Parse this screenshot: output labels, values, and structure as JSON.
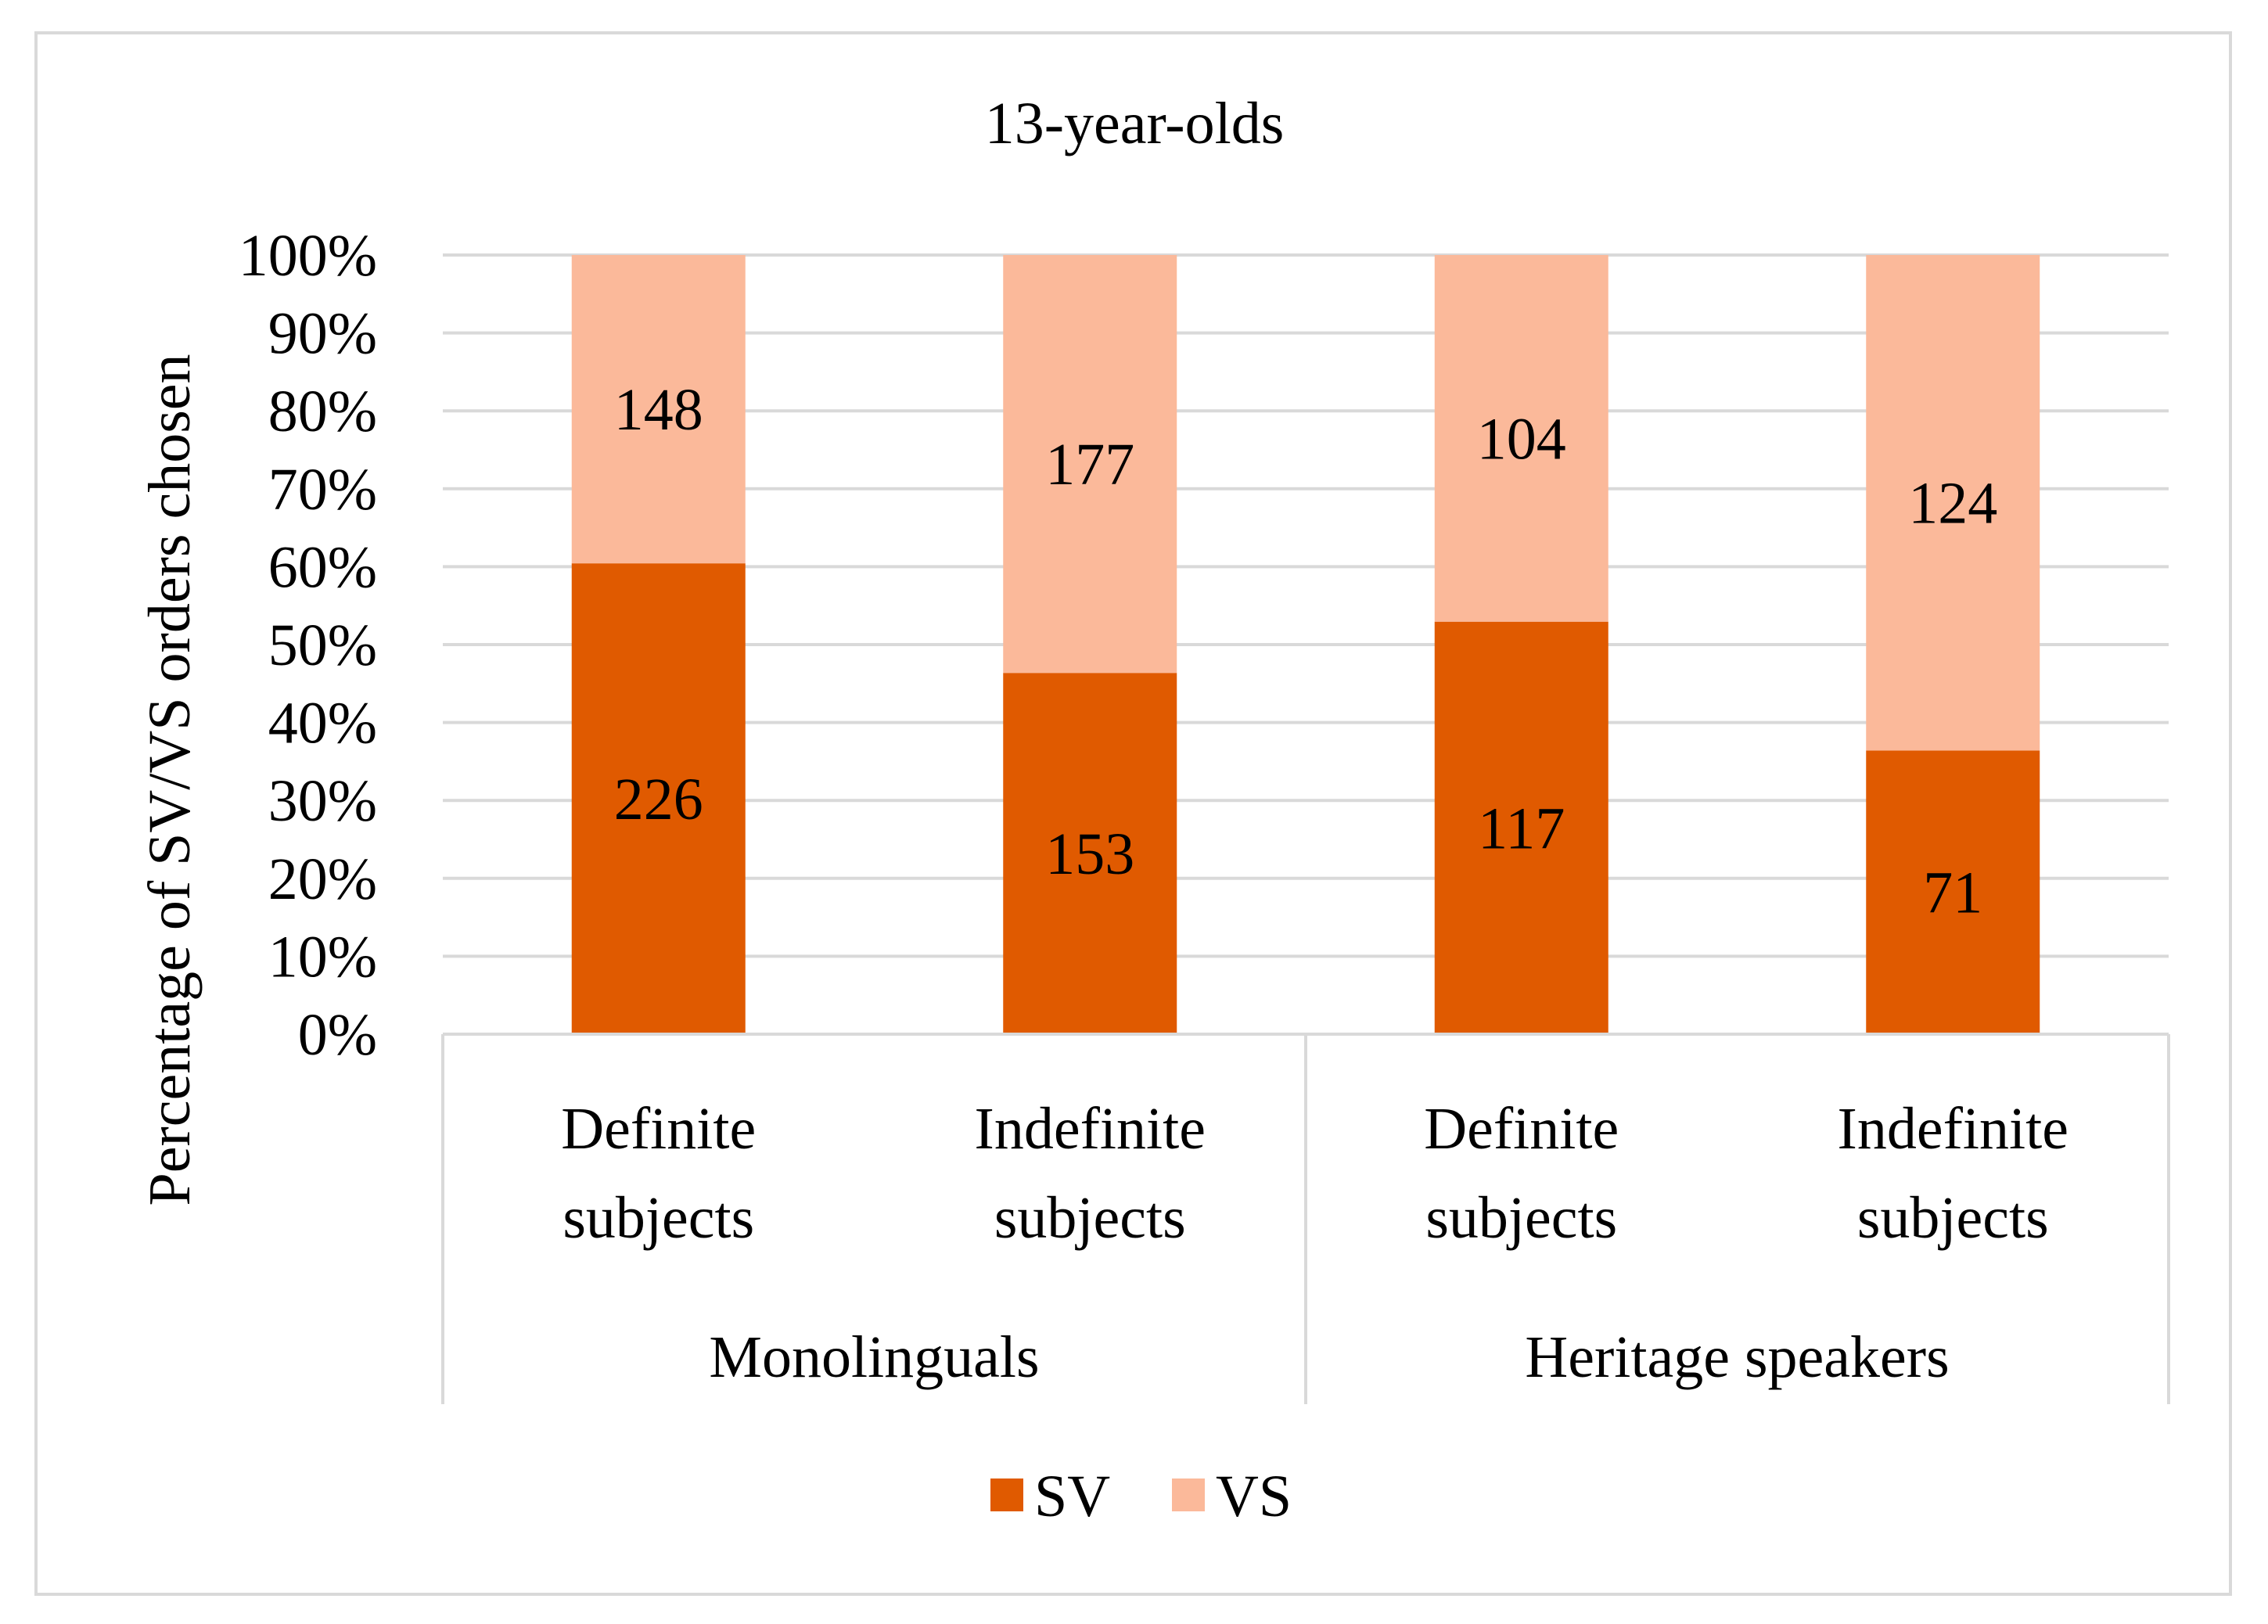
{
  "chart_data": {
    "type": "bar",
    "stacked": "percent",
    "title": "13-year-olds",
    "ylabel": "Percentage of SV/VS orders chosen",
    "xlabel": "",
    "ylim": [
      0,
      100
    ],
    "yticks": [
      "0%",
      "10%",
      "20%",
      "30%",
      "40%",
      "50%",
      "60%",
      "70%",
      "80%",
      "90%",
      "100%"
    ],
    "categories": [
      {
        "lines": [
          "Definite",
          "subjects"
        ]
      },
      {
        "lines": [
          "Indefinite",
          "subjects"
        ]
      },
      {
        "lines": [
          "Definite",
          "subjects"
        ]
      },
      {
        "lines": [
          "Indefinite",
          "subjects"
        ]
      }
    ],
    "groups": [
      {
        "label": "Monolinguals",
        "span": [
          0,
          1
        ]
      },
      {
        "label": "Heritage speakers",
        "span": [
          2,
          3
        ]
      }
    ],
    "series": [
      {
        "name": "SV",
        "color": "#e05a00",
        "values": [
          226,
          153,
          117,
          71
        ]
      },
      {
        "name": "VS",
        "color": "#fbb99a",
        "values": [
          148,
          177,
          104,
          124
        ]
      }
    ],
    "legend_position": "bottom",
    "grid": true
  }
}
